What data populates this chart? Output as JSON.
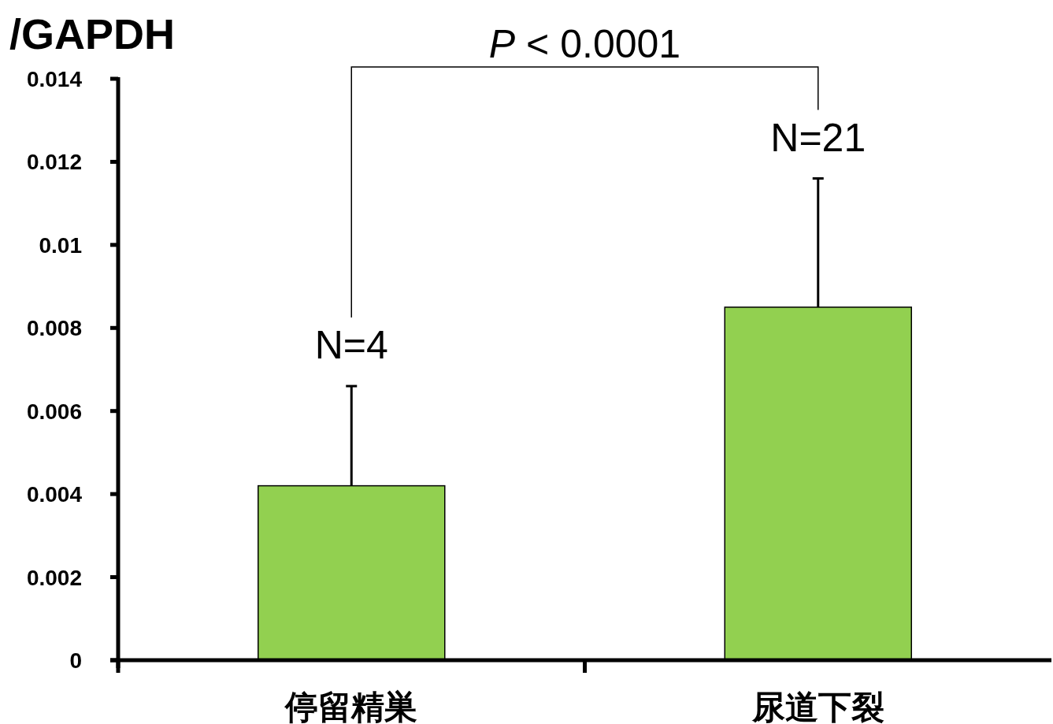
{
  "chart_data": {
    "type": "bar",
    "ylabel": "/GAPDH",
    "categories": [
      "停留精巣",
      "尿道下裂"
    ],
    "values": [
      0.0042,
      0.0085
    ],
    "errors": [
      [
        0.0042,
        0.0066
      ],
      [
        0.0085,
        0.0116
      ]
    ],
    "color": "#92d050",
    "ylim": [
      0,
      0.014
    ],
    "yticks": [
      0,
      0.002,
      0.004,
      0.006,
      0.008,
      0.01,
      0.012,
      0.014
    ],
    "grid": false,
    "annotations": [
      "N=4",
      "N=21",
      "P < 0.0001"
    ]
  }
}
